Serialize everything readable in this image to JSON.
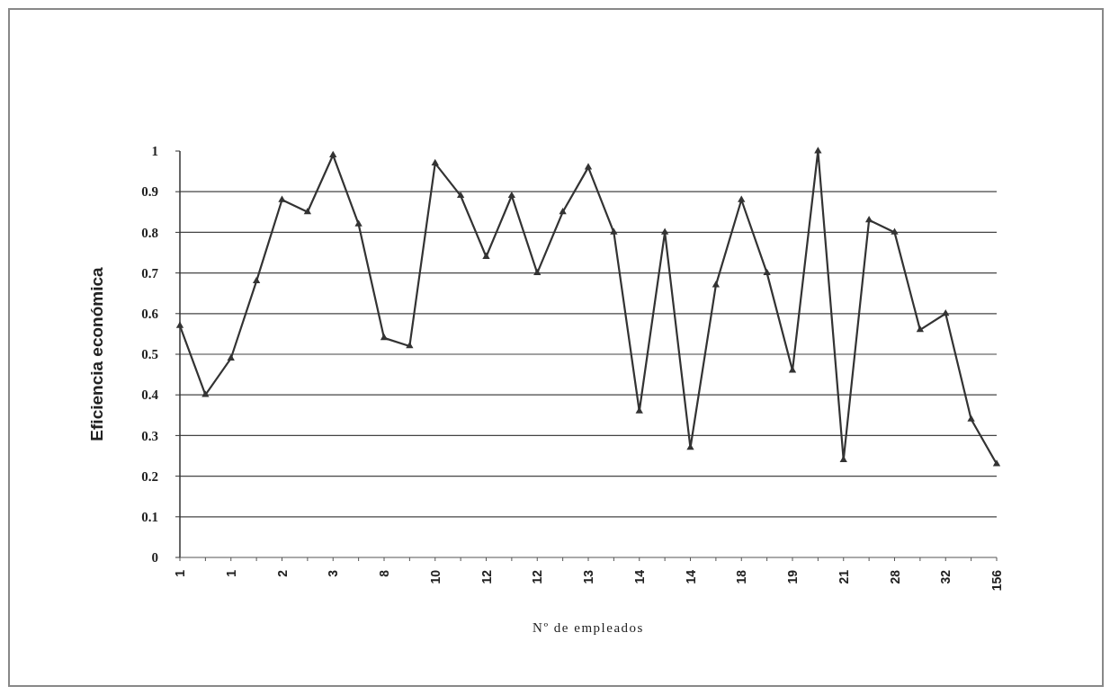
{
  "chart_data": {
    "type": "line",
    "xlabel": "Nº de empleados",
    "ylabel": "Eficiencia económica",
    "categories": [
      "1",
      null,
      "1",
      null,
      "2",
      null,
      "3",
      null,
      "8",
      null,
      "10",
      null,
      "12",
      null,
      "12",
      null,
      "13",
      null,
      "14",
      null,
      "14",
      null,
      "18",
      null,
      "19",
      null,
      "21",
      null,
      "28",
      null,
      "32",
      null,
      "156"
    ],
    "series": [
      {
        "color": "#333333",
        "values": [
          0.57,
          0.4,
          0.49,
          0.68,
          0.88,
          0.85,
          0.99,
          0.82,
          0.54,
          0.52,
          0.97,
          0.89,
          0.74,
          0.89,
          0.7,
          0.85,
          0.96,
          0.8,
          0.36,
          0.8,
          0.27,
          0.67,
          0.88,
          0.7,
          0.46,
          1.0,
          0.24,
          0.83,
          0.8,
          0.56,
          0.6,
          0.34,
          0.23
        ]
      }
    ],
    "ylim": [
      0,
      1
    ],
    "yticks": [
      0,
      0.1,
      0.2,
      0.3,
      0.4,
      0.5,
      0.6,
      0.7,
      0.8,
      0.9,
      1
    ],
    "grid": "y",
    "marker": "triangle",
    "line_style": "solid"
  }
}
